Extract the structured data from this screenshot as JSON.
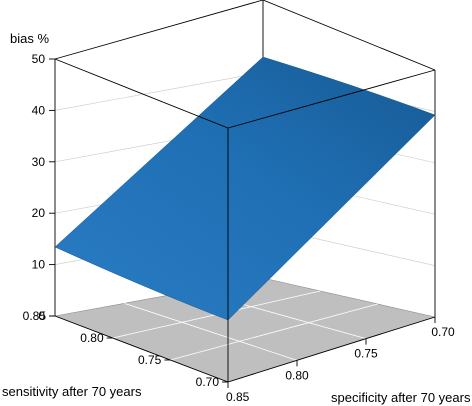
{
  "chart_data": {
    "type": "surface",
    "z_label": "bias %",
    "x_label": "sensitivity after 70 years",
    "y_label": "specificity after 70 years",
    "x_range": [
      0.7,
      0.85
    ],
    "y_range": [
      0.7,
      0.85
    ],
    "z_range": [
      0,
      50
    ],
    "z_ticks": [
      "0",
      "10",
      "20",
      "30",
      "40",
      "50"
    ],
    "x_ticks": [
      "0.85",
      "0.80",
      "0.75",
      "0.70"
    ],
    "y_ticks": [
      "0.85",
      "0.80",
      "0.75",
      "0.70"
    ],
    "surface_corners": [
      {
        "sensitivity": 0.85,
        "specificity": 0.85,
        "bias": 0
      },
      {
        "sensitivity": 0.7,
        "specificity": 0.85,
        "bias": 13
      },
      {
        "sensitivity": 0.85,
        "specificity": 0.7,
        "bias": 39
      },
      {
        "sensitivity": 0.7,
        "specificity": 0.7,
        "bias": 50
      }
    ],
    "grid": true,
    "colors": {
      "surface": "#1f6fb4",
      "surface_dark": "#175a94",
      "floor": "#bfbfbf",
      "box": "#000000"
    }
  }
}
